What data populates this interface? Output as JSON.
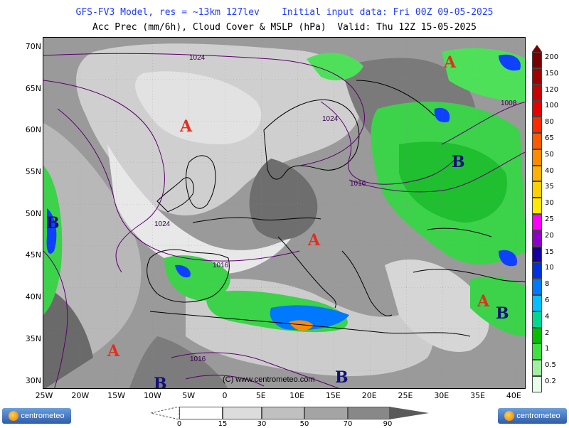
{
  "header": {
    "line1": "GFS-FV3 Model, res = ~13km 127lev    Initial input data: Fri 00Z 09-05-2025",
    "line2": "Acc Prec (mm/6h), Cloud Cover & MSLP (hPa)  Valid: Thu 12Z 15-05-2025"
  },
  "axes": {
    "lat_labels": [
      "70N",
      "65N",
      "60N",
      "55N",
      "50N",
      "45N",
      "40N",
      "35N",
      "30N"
    ],
    "lon_labels": [
      "25W",
      "20W",
      "15W",
      "10W",
      "5W",
      "0",
      "5E",
      "10E",
      "15E",
      "20E",
      "25E",
      "30E",
      "35E",
      "40E"
    ]
  },
  "isobar_labels": [
    "1024",
    "1024",
    "1016",
    "1024",
    "1016",
    "1008",
    "1016"
  ],
  "pressure_centers": [
    {
      "label": "A",
      "type": "high"
    },
    {
      "label": "A",
      "type": "high"
    },
    {
      "label": "A",
      "type": "high"
    },
    {
      "label": "A",
      "type": "high"
    },
    {
      "label": "A",
      "type": "high"
    },
    {
      "label": "B",
      "type": "low"
    },
    {
      "label": "B",
      "type": "low"
    },
    {
      "label": "B",
      "type": "low"
    },
    {
      "label": "B",
      "type": "low"
    },
    {
      "label": "B",
      "type": "low"
    }
  ],
  "colorbar": {
    "labels": [
      "200",
      "150",
      "120",
      "100",
      "80",
      "65",
      "50",
      "40",
      "35",
      "30",
      "25",
      "20",
      "15",
      "10",
      "8",
      "6",
      "4",
      "2",
      "1",
      "0.5",
      "0.2"
    ],
    "colors": [
      "#7a0000",
      "#a00000",
      "#c80000",
      "#e60000",
      "#ff2a00",
      "#ff5a00",
      "#ff8a00",
      "#ffb000",
      "#ffd000",
      "#ffea00",
      "#ff00ff",
      "#9000c8",
      "#1400a0",
      "#0030e0",
      "#0078ff",
      "#00c0ff",
      "#00d890",
      "#00c000",
      "#40e040",
      "#a0f0a0",
      "#e6ffe6"
    ]
  },
  "cloud_scale": {
    "labels": [
      "0",
      "15",
      "30",
      "50",
      "70",
      "90"
    ],
    "colors": [
      "#ffffff",
      "#dcdcdc",
      "#c0c0c0",
      "#a4a4a4",
      "#888888",
      "#6a6a6a"
    ]
  },
  "logos": {
    "text": "centrometeo"
  },
  "copyright": "(C) www.centrometeo.com",
  "colors": {
    "high": "#e03020",
    "low": "#10107a",
    "isobar": "#5a006e"
  }
}
